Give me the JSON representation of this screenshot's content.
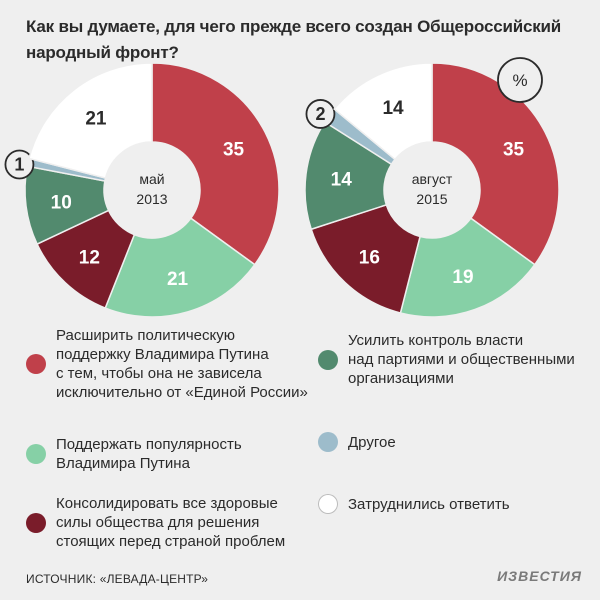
{
  "title_line1": "Как вы думаете, для чего прежде всего создан Общероссийский",
  "title_line2": "народный фронт?",
  "unit_badge": "%",
  "colors": {
    "support_putin": "#c0404a",
    "popularity": "#86d0a6",
    "consolidate": "#7a1c2a",
    "control": "#528a6e",
    "other": "#9dbccb",
    "dont_know": "#ffffff"
  },
  "chart_data": [
    {
      "type": "pie",
      "center_label_line1": "май",
      "center_label_line2": "2013",
      "slices": [
        {
          "key": "support_putin",
          "value": 35
        },
        {
          "key": "popularity",
          "value": 21
        },
        {
          "key": "consolidate",
          "value": 12
        },
        {
          "key": "control",
          "value": 10
        },
        {
          "key": "other",
          "value": 1
        },
        {
          "key": "dont_know",
          "value": 21
        }
      ]
    },
    {
      "type": "pie",
      "center_label_line1": "август",
      "center_label_line2": "2015",
      "slices": [
        {
          "key": "support_putin",
          "value": 35
        },
        {
          "key": "popularity",
          "value": 19
        },
        {
          "key": "consolidate",
          "value": 16
        },
        {
          "key": "control",
          "value": 14
        },
        {
          "key": "other",
          "value": 2
        },
        {
          "key": "dont_know",
          "value": 14
        }
      ]
    }
  ],
  "legend": [
    {
      "key": "support_putin",
      "label": "Расширить политическую\nподдержку Владимира Путина\nс тем, чтобы она не зависела\nисключительно от «Единой России»"
    },
    {
      "key": "control",
      "label": "Усилить контроль власти\nнад партиями и общественными\nорганизациями"
    },
    {
      "key": "popularity",
      "label": "Поддержать популярность\nВладимира Путина"
    },
    {
      "key": "other",
      "label": "Другое"
    },
    {
      "key": "consolidate",
      "label": "Консолидировать все здоровые\nсилы общества для решения\nстоящих перед страной проблем"
    },
    {
      "key": "dont_know",
      "label": "Затруднились ответить"
    }
  ],
  "source": "ИСТОЧНИК: «ЛЕВАДА-ЦЕНТР»",
  "brand": "ИЗВЕСТИЯ"
}
